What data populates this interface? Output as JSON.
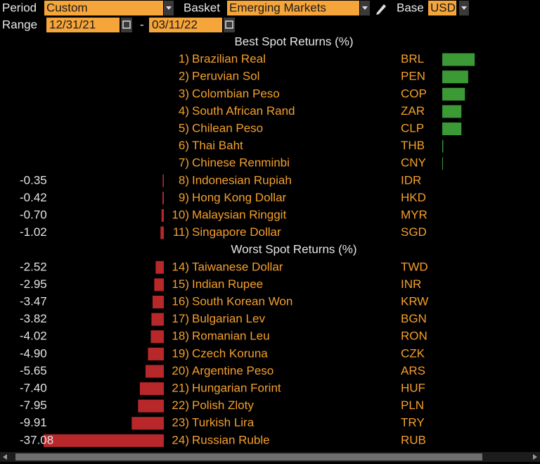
{
  "header": {
    "period_label": "Period",
    "period": "Custom",
    "basket_label": "Basket",
    "basket": "Emerging Markets",
    "base_label": "Base",
    "base": "USD",
    "range_label": "Range",
    "start": "12/31/21",
    "dash": "-",
    "end": "03/11/22"
  },
  "positive_color": "#3b9a35",
  "negative_color": "#b8282b",
  "sections": [
    {
      "title": "Best Spot Returns (%)",
      "rows": [
        {
          "rank": "1)",
          "name": "Brazilian Real",
          "code": "BRL",
          "value": 10.0
        },
        {
          "rank": "2)",
          "name": "Peruvian Sol",
          "code": "PEN",
          "value": 8.0
        },
        {
          "rank": "3)",
          "name": "Colombian Peso",
          "code": "COP",
          "value": 7.0
        },
        {
          "rank": "4)",
          "name": "South African Rand",
          "code": "ZAR",
          "value": 5.9
        },
        {
          "rank": "5)",
          "name": "Chilean Peso",
          "code": "CLP",
          "value": 5.9
        },
        {
          "rank": "6)",
          "name": "Thai Baht",
          "code": "THB",
          "value": 0.3
        },
        {
          "rank": "7)",
          "name": "Chinese Renminbi",
          "code": "CNY",
          "value": 0.2
        },
        {
          "rank": "8)",
          "name": "Indonesian Rupiah",
          "code": "IDR",
          "value": -0.35,
          "value_label": "-0.35"
        },
        {
          "rank": "9)",
          "name": "Hong Kong Dollar",
          "code": "HKD",
          "value": -0.42,
          "value_label": "-0.42"
        },
        {
          "rank": "10)",
          "name": "Malaysian Ringgit",
          "code": "MYR",
          "value": -0.7,
          "value_label": "-0.70"
        },
        {
          "rank": "11)",
          "name": "Singapore Dollar",
          "code": "SGD",
          "value": -1.02,
          "value_label": "-1.02"
        }
      ]
    },
    {
      "title": "Worst Spot Returns (%)",
      "rows": [
        {
          "rank": "14)",
          "name": "Taiwanese Dollar",
          "code": "TWD",
          "value": -2.52,
          "value_label": "-2.52"
        },
        {
          "rank": "15)",
          "name": "Indian Rupee",
          "code": "INR",
          "value": -2.95,
          "value_label": "-2.95"
        },
        {
          "rank": "16)",
          "name": "South Korean Won",
          "code": "KRW",
          "value": -3.47,
          "value_label": "-3.47"
        },
        {
          "rank": "17)",
          "name": "Bulgarian Lev",
          "code": "BGN",
          "value": -3.82,
          "value_label": "-3.82"
        },
        {
          "rank": "18)",
          "name": "Romanian Leu",
          "code": "RON",
          "value": -4.02,
          "value_label": "-4.02"
        },
        {
          "rank": "19)",
          "name": "Czech Koruna",
          "code": "CZK",
          "value": -4.9,
          "value_label": "-4.90"
        },
        {
          "rank": "20)",
          "name": "Argentine Peso",
          "code": "ARS",
          "value": -5.65,
          "value_label": "-5.65"
        },
        {
          "rank": "21)",
          "name": "Hungarian Forint",
          "code": "HUF",
          "value": -7.4,
          "value_label": "-7.40"
        },
        {
          "rank": "22)",
          "name": "Polish Zloty",
          "code": "PLN",
          "value": -7.95,
          "value_label": "-7.95"
        },
        {
          "rank": "23)",
          "name": "Turkish Lira",
          "code": "TRY",
          "value": -9.91,
          "value_label": "-9.91"
        },
        {
          "rank": "24)",
          "name": "Russian Ruble",
          "code": "RUB",
          "value": -37.08,
          "value_label": "-37.08"
        }
      ]
    }
  ]
}
